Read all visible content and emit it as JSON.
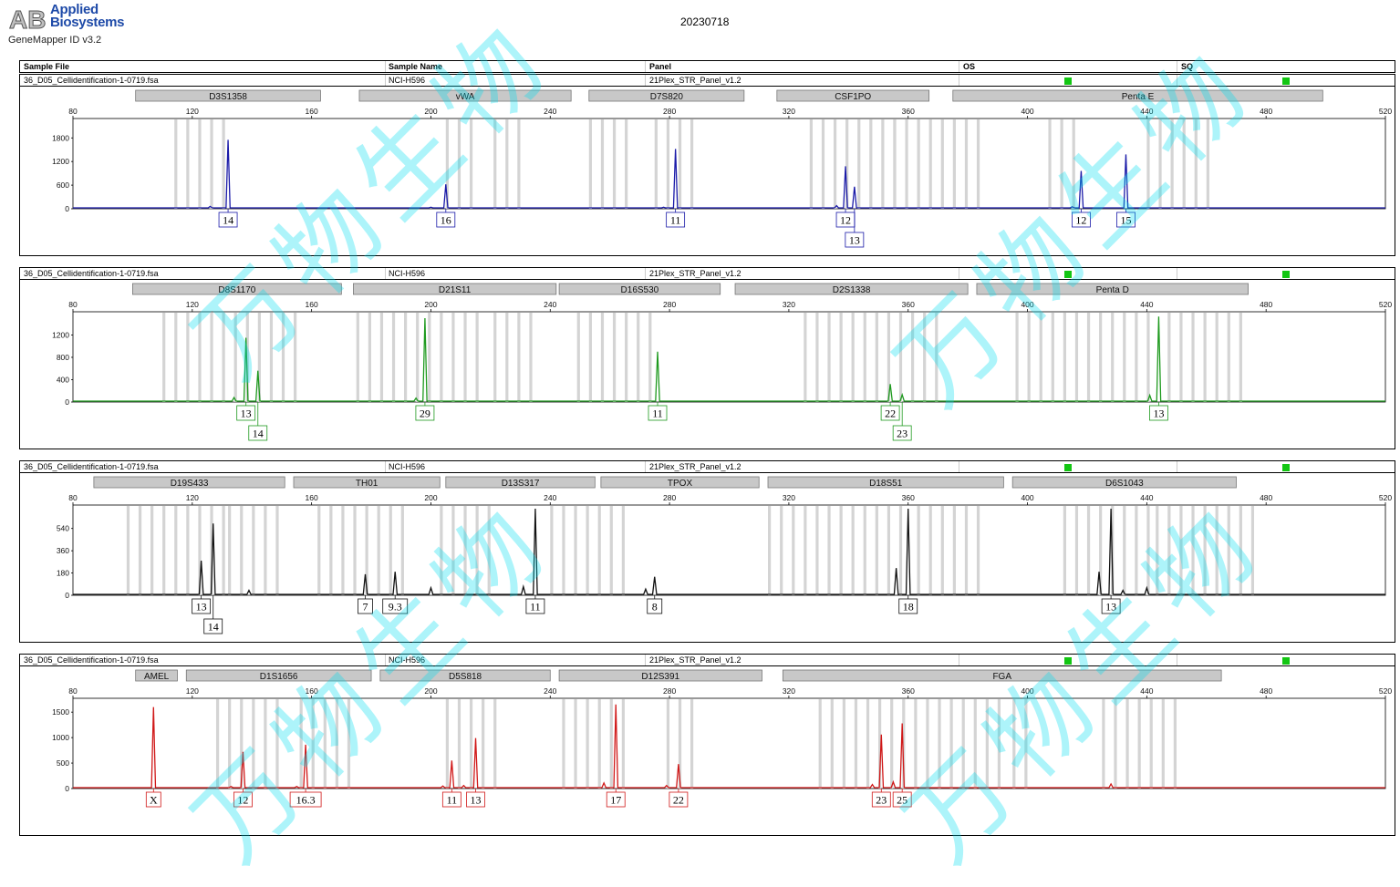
{
  "header": {
    "logo_letters": "AB",
    "brand_line1": "Applied",
    "brand_line2": "Biosystems",
    "app_name": "GeneMapper ID v3.2",
    "date": "20230718"
  },
  "columns": {
    "sample_file": "Sample File",
    "sample_name": "Sample Name",
    "panel": "Panel",
    "os": "OS",
    "sq": "SQ"
  },
  "sample": {
    "file": "36_D05_Cellidentification-1-0719.fsa",
    "name": "NCI-H596",
    "panel": "21Plex_STR_Panel_v1.2"
  },
  "colors": {
    "blue": "#1a1aa8",
    "green": "#1f9a1f",
    "black": "#111111",
    "red": "#d01818",
    "qc_ok": "#13c613",
    "watermark": "#00dcf0"
  },
  "watermark": "万物生物",
  "chart_data": [
    {
      "type": "line",
      "dye": "blue",
      "x_range": [
        80,
        520
      ],
      "x_ticks": [
        80,
        120,
        160,
        200,
        240,
        280,
        320,
        360,
        400,
        440,
        480,
        520
      ],
      "y_range": [
        0,
        2200
      ],
      "y_ticks": [
        0,
        600,
        1200,
        1800
      ],
      "markers": [
        {
          "name": "D3S1358",
          "start": 101,
          "end": 163
        },
        {
          "name": "vWA",
          "start": 176,
          "end": 247
        },
        {
          "name": "D7S820",
          "start": 253,
          "end": 305
        },
        {
          "name": "CSF1PO",
          "start": 316,
          "end": 367
        },
        {
          "name": "Penta E",
          "start": 375,
          "end": 499
        }
      ],
      "peaks": [
        {
          "x": 132,
          "height": 1750,
          "label": "14",
          "row": 1
        },
        {
          "x": 205,
          "height": 620,
          "label": "16",
          "row": 1
        },
        {
          "x": 282,
          "height": 1520,
          "label": "11",
          "row": 1
        },
        {
          "x": 339,
          "height": 1080,
          "label": "12",
          "row": 1
        },
        {
          "x": 342,
          "height": 560,
          "label": "13",
          "row": 2
        },
        {
          "x": 418,
          "height": 960,
          "label": "12",
          "row": 1
        },
        {
          "x": 433,
          "height": 1380,
          "label": "15",
          "row": 1
        }
      ],
      "minor": [
        [
          126,
          60
        ],
        [
          200,
          40
        ],
        [
          278,
          40
        ],
        [
          336,
          80
        ],
        [
          415,
          50
        ]
      ],
      "bins": [
        [
          114,
          132
        ],
        [
          205,
          216
        ],
        [
          221,
          232
        ],
        [
          253,
          268
        ],
        [
          275,
          287
        ],
        [
          327,
          356
        ],
        [
          355,
          386
        ],
        [
          407,
          416
        ],
        [
          440,
          462
        ]
      ]
    },
    {
      "type": "line",
      "dye": "green",
      "x_range": [
        80,
        520
      ],
      "x_ticks": [
        80,
        120,
        160,
        200,
        240,
        280,
        320,
        360,
        400,
        440,
        480,
        520
      ],
      "y_range": [
        0,
        1550
      ],
      "y_ticks": [
        0,
        400,
        800,
        1200
      ],
      "markers": [
        {
          "name": "D8S1170",
          "start": 100,
          "end": 170
        },
        {
          "name": "D21S11",
          "start": 174,
          "end": 242
        },
        {
          "name": "D16S530",
          "start": 243,
          "end": 297
        },
        {
          "name": "D2S1338",
          "start": 302,
          "end": 380
        },
        {
          "name": "Penta D",
          "start": 383,
          "end": 474
        }
      ],
      "peaks": [
        {
          "x": 138,
          "height": 1150,
          "label": "13",
          "row": 1
        },
        {
          "x": 142,
          "height": 560,
          "label": "14",
          "row": 2
        },
        {
          "x": 198,
          "height": 1500,
          "label": "29",
          "row": 1
        },
        {
          "x": 276,
          "height": 900,
          "label": "11",
          "row": 1
        },
        {
          "x": 354,
          "height": 320,
          "label": "22",
          "row": 1
        },
        {
          "x": 358,
          "height": 130,
          "label": "23",
          "row": 2
        },
        {
          "x": 444,
          "height": 1530,
          "label": "13",
          "row": 1
        }
      ],
      "minor": [
        [
          134,
          80
        ],
        [
          195,
          70
        ],
        [
          441,
          120
        ]
      ],
      "bins": [
        [
          110,
          155
        ],
        [
          175,
          218
        ],
        [
          221,
          236
        ],
        [
          249,
          276
        ],
        [
          325,
          369
        ],
        [
          396,
          443
        ],
        [
          447,
          474
        ]
      ]
    },
    {
      "type": "line",
      "dye": "black",
      "x_range": [
        80,
        520
      ],
      "x_ticks": [
        80,
        120,
        160,
        200,
        240,
        280,
        320,
        360,
        400,
        440,
        480,
        520
      ],
      "y_range": [
        0,
        700
      ],
      "y_ticks": [
        0,
        180,
        360,
        540
      ],
      "markers": [
        {
          "name": "D19S433",
          "start": 87,
          "end": 151
        },
        {
          "name": "TH01",
          "start": 154,
          "end": 203
        },
        {
          "name": "D13S317",
          "start": 205,
          "end": 255
        },
        {
          "name": "TPOX",
          "start": 257,
          "end": 310
        },
        {
          "name": "D18S51",
          "start": 313,
          "end": 392
        },
        {
          "name": "D6S1043",
          "start": 395,
          "end": 470
        }
      ],
      "peaks": [
        {
          "x": 123,
          "height": 280,
          "label": "13",
          "row": 1
        },
        {
          "x": 127,
          "height": 580,
          "label": "14",
          "row": 2
        },
        {
          "x": 178,
          "height": 170,
          "label": "7",
          "row": 1
        },
        {
          "x": 188,
          "height": 190,
          "label": "9.3",
          "row": 1
        },
        {
          "x": 235,
          "height": 700,
          "label": "11",
          "row": 1
        },
        {
          "x": 275,
          "height": 150,
          "label": "8",
          "row": 1
        },
        {
          "x": 360,
          "height": 700,
          "label": "18",
          "row": 1
        },
        {
          "x": 428,
          "height": 700,
          "label": "13",
          "row": 1
        }
      ],
      "minor": [
        [
          139,
          40
        ],
        [
          200,
          60
        ],
        [
          231,
          70
        ],
        [
          272,
          50
        ],
        [
          356,
          220
        ],
        [
          424,
          190
        ],
        [
          432,
          40
        ],
        [
          440,
          60
        ]
      ],
      "bins": [
        [
          98,
          130
        ],
        [
          132,
          150
        ],
        [
          162,
          190
        ],
        [
          203,
          220
        ],
        [
          240,
          266
        ],
        [
          313,
          360
        ],
        [
          363,
          385
        ],
        [
          412,
          440
        ],
        [
          443,
          475
        ]
      ]
    },
    {
      "type": "line",
      "dye": "red",
      "x_range": [
        80,
        520
      ],
      "x_ticks": [
        80,
        120,
        160,
        200,
        240,
        280,
        320,
        360,
        400,
        440,
        480,
        520
      ],
      "y_range": [
        0,
        1700
      ],
      "y_ticks": [
        0,
        500,
        1000,
        1500
      ],
      "markers": [
        {
          "name": "AMEL",
          "start": 101,
          "end": 115
        },
        {
          "name": "D1S1656",
          "start": 118,
          "end": 180
        },
        {
          "name": "D5S818",
          "start": 183,
          "end": 240
        },
        {
          "name": "D12S391",
          "start": 243,
          "end": 311
        },
        {
          "name": "FGA",
          "start": 318,
          "end": 465
        }
      ],
      "peaks": [
        {
          "x": 107,
          "height": 1600,
          "label": "X",
          "row": 1
        },
        {
          "x": 137,
          "height": 720,
          "label": "12",
          "row": 1
        },
        {
          "x": 158,
          "height": 860,
          "label": "16.3",
          "row": 1
        },
        {
          "x": 207,
          "height": 550,
          "label": "11",
          "row": 1
        },
        {
          "x": 215,
          "height": 990,
          "label": "13",
          "row": 1
        },
        {
          "x": 262,
          "height": 1650,
          "label": "17",
          "row": 1
        },
        {
          "x": 283,
          "height": 480,
          "label": "22",
          "row": 1
        },
        {
          "x": 351,
          "height": 1060,
          "label": "23",
          "row": 1
        },
        {
          "x": 358,
          "height": 1280,
          "label": "25",
          "row": 1
        }
      ],
      "minor": [
        [
          133,
          40
        ],
        [
          155,
          40
        ],
        [
          204,
          50
        ],
        [
          211,
          60
        ],
        [
          258,
          110
        ],
        [
          279,
          60
        ],
        [
          348,
          80
        ],
        [
          355,
          130
        ],
        [
          428,
          90
        ]
      ],
      "bins": [
        [
          128,
          150
        ],
        [
          156,
          172
        ],
        [
          205,
          222
        ],
        [
          244,
          266
        ],
        [
          279,
          290
        ],
        [
          330,
          390
        ],
        [
          395,
          401
        ],
        [
          425,
          450
        ]
      ]
    }
  ]
}
